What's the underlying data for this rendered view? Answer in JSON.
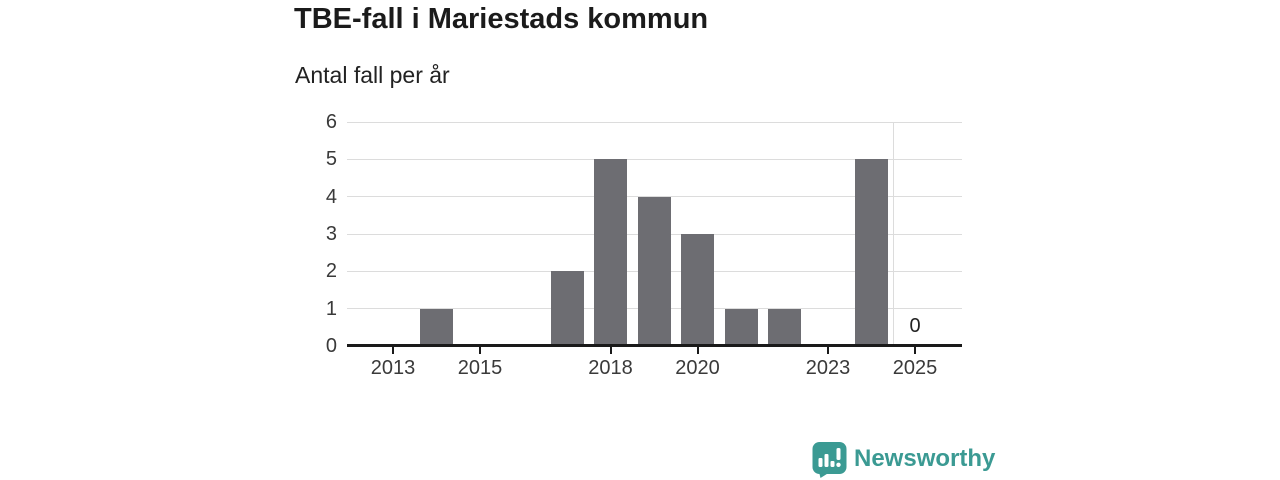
{
  "chart_data": {
    "type": "bar",
    "title": "TBE-fall i Mariestads kommun",
    "subtitle": "Antal fall per år",
    "categories": [
      "2012",
      "2013",
      "2014",
      "2015",
      "2016",
      "2017",
      "2018",
      "2019",
      "2020",
      "2021",
      "2022",
      "2023",
      "2024",
      "2025"
    ],
    "values": [
      0,
      0,
      1,
      0,
      0,
      2,
      5,
      4,
      3,
      1,
      1,
      0,
      5,
      0
    ],
    "x_tick_labels": [
      "2013",
      "2015",
      "2018",
      "2020",
      "2023",
      "2025"
    ],
    "y_tick_labels": [
      "0",
      "1",
      "2",
      "3",
      "4",
      "5",
      "6"
    ],
    "ylim": [
      0,
      6
    ],
    "grid": "horizontal",
    "legend": "none",
    "annotations": [
      {
        "category": "2025",
        "text": "0"
      }
    ],
    "separator_before_category": "2025",
    "colors": {
      "bar": "#6d6d72",
      "gridline": "#dcdcdc",
      "axis": "#1a1a1a",
      "tick_text": "#3a3a3a"
    }
  },
  "branding": {
    "name": "Newsworthy",
    "color": "#3b9a93",
    "icon": "newsworthy-speech-bubble-bar-chart-icon"
  }
}
